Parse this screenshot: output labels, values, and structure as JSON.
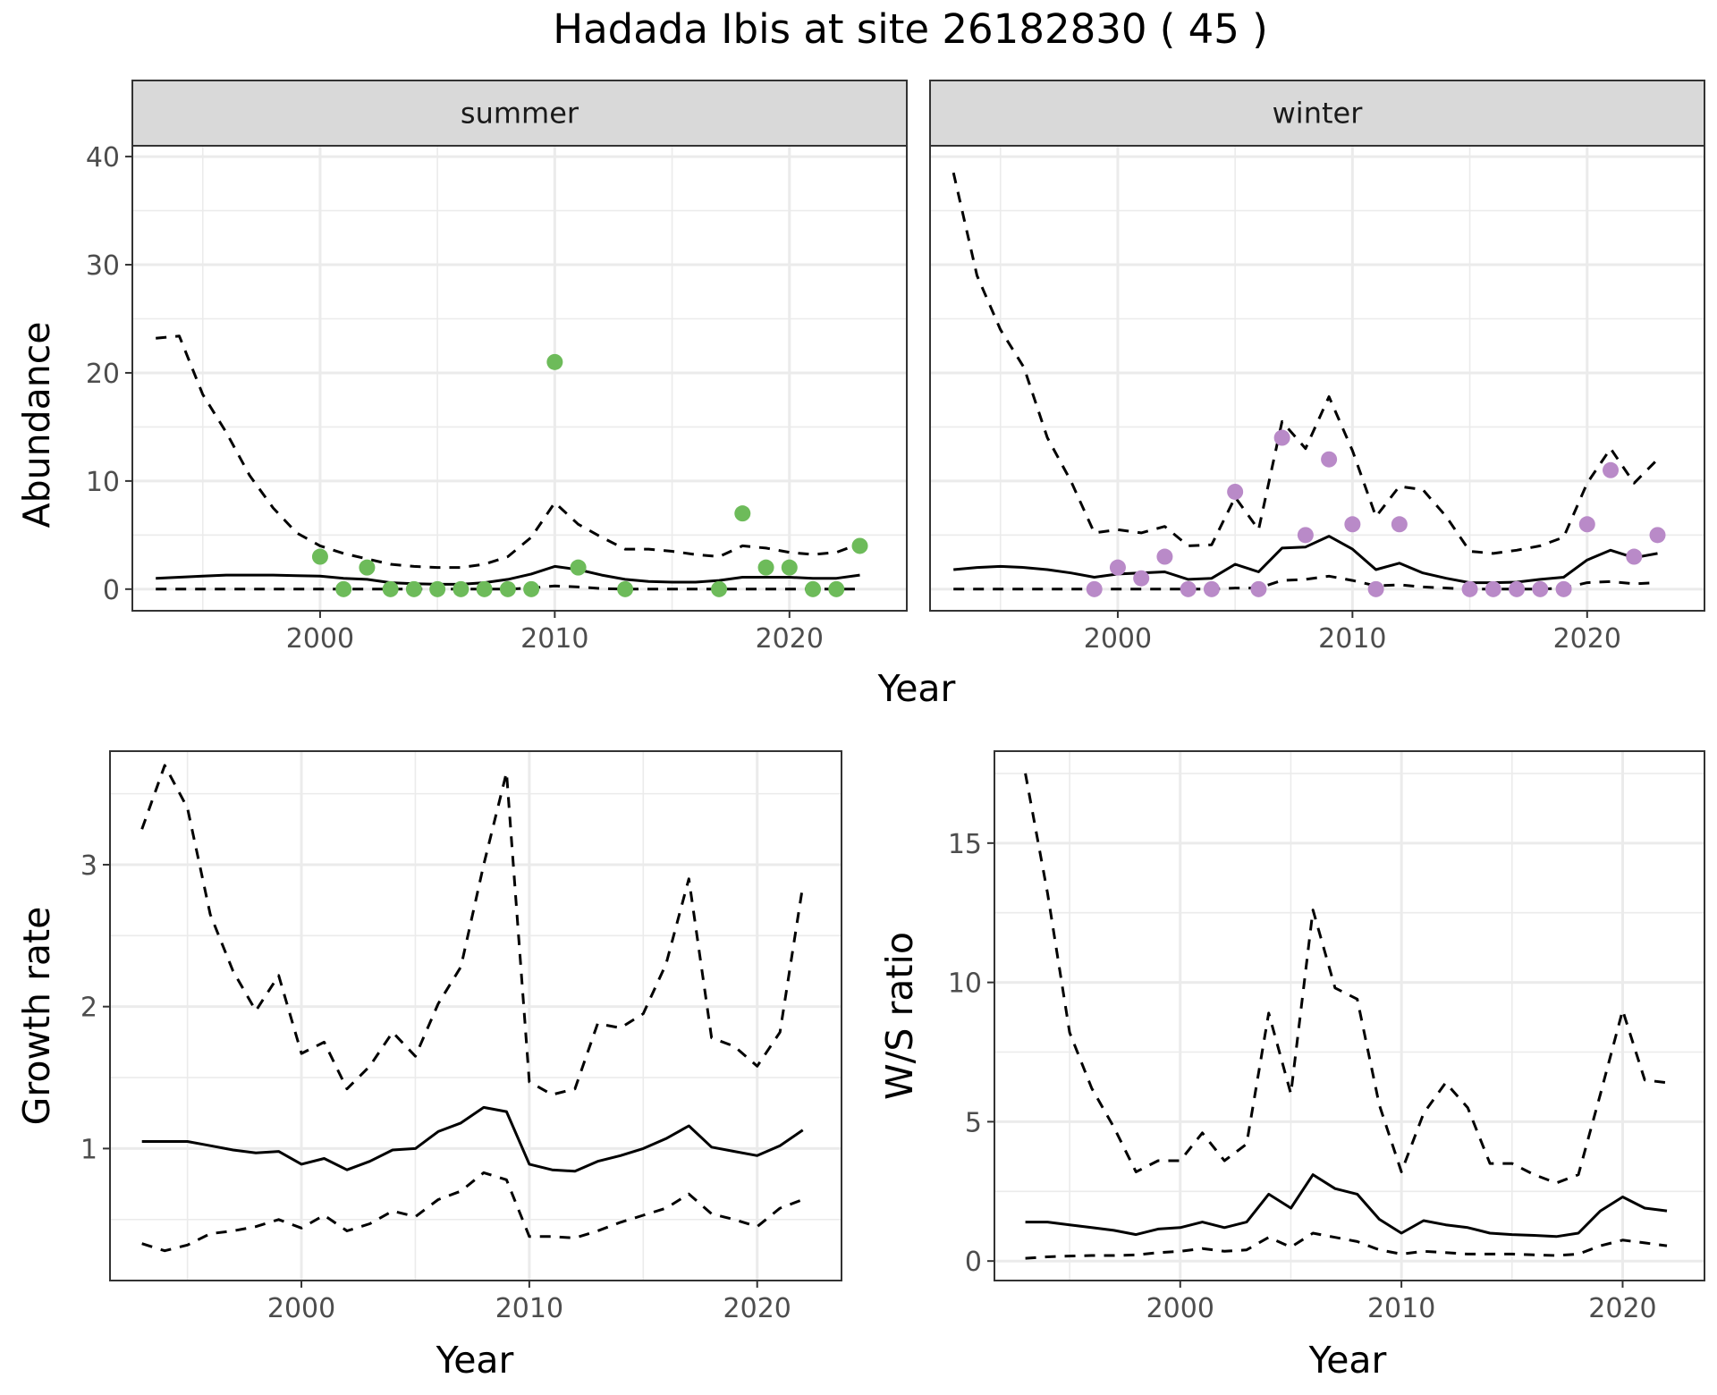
{
  "title": "Hadada Ibis at site 26182830 ( 45 )",
  "colors": {
    "summer_points": "#6dbb5a",
    "winter_points": "#b98ac8",
    "lines": "#000000",
    "grid": "#ebebeb",
    "strip_fill": "#d9d9d9"
  },
  "chart_data": [
    {
      "type": "line",
      "panel": "summer",
      "strip_label": "summer",
      "xlabel": "Year",
      "ylabel": "Abundance",
      "xlim": [
        1992,
        2025
      ],
      "ylim": [
        -2,
        41
      ],
      "x_ticks": [
        2000,
        2010,
        2020
      ],
      "y_ticks": [
        0,
        10,
        20,
        30,
        40
      ],
      "grid": true,
      "x": [
        1993,
        1994,
        1995,
        1996,
        1997,
        1998,
        1999,
        2000,
        2001,
        2002,
        2003,
        2004,
        2005,
        2006,
        2007,
        2008,
        2009,
        2010,
        2011,
        2012,
        2013,
        2014,
        2015,
        2016,
        2017,
        2018,
        2019,
        2020,
        2021,
        2022,
        2023
      ],
      "series": [
        {
          "style": "solid",
          "values": [
            1.0,
            1.1,
            1.2,
            1.3,
            1.3,
            1.3,
            1.25,
            1.2,
            1.0,
            0.9,
            0.6,
            0.5,
            0.45,
            0.45,
            0.6,
            0.9,
            1.4,
            2.1,
            1.8,
            1.3,
            0.9,
            0.7,
            0.65,
            0.65,
            0.8,
            1.1,
            1.1,
            1.1,
            1.0,
            1.0,
            1.3
          ]
        },
        {
          "style": "dashed",
          "values": [
            23.2,
            23.4,
            18,
            14.5,
            10.5,
            7.5,
            5.2,
            4.0,
            3.3,
            2.8,
            2.3,
            2.1,
            2.0,
            2.0,
            2.3,
            3.0,
            4.8,
            8.0,
            6.0,
            4.8,
            3.7,
            3.7,
            3.5,
            3.2,
            3.0,
            4.0,
            3.8,
            3.4,
            3.2,
            3.4,
            4.2
          ]
        },
        {
          "style": "dashed",
          "values": [
            0.0,
            0.0,
            0.0,
            0.0,
            0.0,
            0.0,
            0.0,
            0.0,
            0.0,
            0.0,
            0.0,
            0.0,
            0.0,
            0.0,
            0.0,
            0.0,
            0.1,
            0.3,
            0.2,
            0.05,
            0.0,
            0.0,
            0.0,
            0.0,
            0.0,
            0.0,
            0.0,
            0.0,
            0.0,
            0.0,
            0.0
          ]
        }
      ],
      "points": {
        "x": [
          2000,
          2001,
          2002,
          2003,
          2004,
          2005,
          2006,
          2007,
          2008,
          2009,
          2010,
          2011,
          2013,
          2017,
          2018,
          2019,
          2020,
          2021,
          2022,
          2023
        ],
        "y": [
          3,
          0,
          2,
          0,
          0,
          0,
          0,
          0,
          0,
          0,
          21,
          2,
          0,
          0,
          7,
          2,
          2,
          0,
          0,
          4
        ]
      }
    },
    {
      "type": "line",
      "panel": "winter",
      "strip_label": "winter",
      "xlabel": "Year",
      "ylabel": "Abundance",
      "xlim": [
        1992,
        2025
      ],
      "ylim": [
        -2,
        41
      ],
      "x_ticks": [
        2000,
        2010,
        2020
      ],
      "y_ticks": [
        0,
        10,
        20,
        30,
        40
      ],
      "grid": true,
      "x": [
        1993,
        1994,
        1995,
        1996,
        1997,
        1998,
        1999,
        2000,
        2001,
        2002,
        2003,
        2004,
        2005,
        2006,
        2007,
        2008,
        2009,
        2010,
        2011,
        2012,
        2013,
        2014,
        2015,
        2016,
        2017,
        2018,
        2019,
        2020,
        2021,
        2022,
        2023
      ],
      "series": [
        {
          "style": "solid",
          "values": [
            1.8,
            2.0,
            2.1,
            2.0,
            1.8,
            1.5,
            1.1,
            1.4,
            1.5,
            1.6,
            0.9,
            1.0,
            2.3,
            1.6,
            3.8,
            3.9,
            4.9,
            3.7,
            1.8,
            2.4,
            1.5,
            1.0,
            0.6,
            0.6,
            0.65,
            0.9,
            1.1,
            2.7,
            3.6,
            2.9,
            3.3
          ]
        },
        {
          "style": "dashed",
          "values": [
            38.5,
            29,
            24,
            20.5,
            14,
            10,
            5.2,
            5.5,
            5.2,
            5.8,
            4.0,
            4.1,
            8.5,
            5.5,
            15.5,
            13,
            17.8,
            12.8,
            6.7,
            9.5,
            9.2,
            6.7,
            3.5,
            3.3,
            3.6,
            4.0,
            4.8,
            9.8,
            13.0,
            9.8,
            12.0
          ]
        },
        {
          "style": "dashed",
          "values": [
            0.0,
            0.0,
            0.0,
            0.0,
            0.0,
            0.0,
            0.0,
            0.0,
            0.0,
            0.0,
            0.0,
            0.0,
            0.1,
            0.1,
            0.8,
            0.9,
            1.2,
            0.8,
            0.3,
            0.4,
            0.2,
            0.1,
            0.0,
            0.0,
            0.0,
            0.0,
            0.1,
            0.6,
            0.7,
            0.5,
            0.6
          ]
        }
      ],
      "points": {
        "x": [
          1999,
          2000,
          2001,
          2002,
          2003,
          2004,
          2005,
          2006,
          2007,
          2008,
          2009,
          2010,
          2011,
          2012,
          2015,
          2016,
          2017,
          2018,
          2019,
          2020,
          2021,
          2022,
          2023
        ],
        "y": [
          0,
          2,
          1,
          3,
          0,
          0,
          9,
          0,
          14,
          5,
          12,
          6,
          0,
          6,
          0,
          0,
          0,
          0,
          0,
          6,
          11,
          3,
          5
        ]
      }
    },
    {
      "type": "line",
      "panel": "growth",
      "xlabel": "Year",
      "ylabel": "Growth rate",
      "xlim": [
        1991.6,
        2023.7
      ],
      "ylim": [
        0.07,
        3.8
      ],
      "x_ticks": [
        2000,
        2010,
        2020
      ],
      "y_ticks": [
        1,
        2,
        3
      ],
      "grid": true,
      "x": [
        1993,
        1994,
        1995,
        1996,
        1997,
        1998,
        1999,
        2000,
        2001,
        2002,
        2003,
        2004,
        2005,
        2006,
        2007,
        2008,
        2009,
        2010,
        2011,
        2012,
        2013,
        2014,
        2015,
        2016,
        2017,
        2018,
        2019,
        2020,
        2021,
        2022
      ],
      "series": [
        {
          "style": "solid",
          "values": [
            1.05,
            1.05,
            1.05,
            1.02,
            0.99,
            0.97,
            0.98,
            0.89,
            0.93,
            0.85,
            0.91,
            0.99,
            1.0,
            1.12,
            1.18,
            1.29,
            1.26,
            0.89,
            0.85,
            0.84,
            0.91,
            0.95,
            1.0,
            1.07,
            1.16,
            1.01,
            0.98,
            0.95,
            1.02,
            1.13
          ]
        },
        {
          "style": "dashed",
          "values": [
            3.25,
            3.7,
            3.4,
            2.65,
            2.25,
            1.97,
            2.22,
            1.67,
            1.75,
            1.42,
            1.58,
            1.82,
            1.65,
            2.02,
            2.28,
            3.0,
            3.65,
            1.47,
            1.38,
            1.42,
            1.88,
            1.85,
            1.95,
            2.3,
            2.9,
            1.78,
            1.72,
            1.58,
            1.82,
            2.85
          ]
        },
        {
          "style": "dashed",
          "values": [
            0.33,
            0.28,
            0.32,
            0.4,
            0.42,
            0.45,
            0.5,
            0.44,
            0.53,
            0.42,
            0.47,
            0.56,
            0.52,
            0.64,
            0.7,
            0.83,
            0.78,
            0.38,
            0.38,
            0.37,
            0.42,
            0.48,
            0.53,
            0.58,
            0.68,
            0.54,
            0.5,
            0.45,
            0.58,
            0.64
          ]
        }
      ]
    },
    {
      "type": "line",
      "panel": "ws",
      "xlabel": "Year",
      "ylabel": "W/S ratio",
      "xlim": [
        1991.6,
        2023.7
      ],
      "ylim": [
        -0.7,
        18.3
      ],
      "x_ticks": [
        2000,
        2010,
        2020
      ],
      "y_ticks": [
        0,
        5,
        10,
        15
      ],
      "grid": true,
      "x": [
        1993,
        1994,
        1995,
        1996,
        1997,
        1998,
        1999,
        2000,
        2001,
        2002,
        2003,
        2004,
        2005,
        2006,
        2007,
        2008,
        2009,
        2010,
        2011,
        2012,
        2013,
        2014,
        2015,
        2016,
        2017,
        2018,
        2019,
        2020,
        2021,
        2022
      ],
      "series": [
        {
          "style": "solid",
          "values": [
            1.4,
            1.4,
            1.3,
            1.2,
            1.1,
            0.95,
            1.15,
            1.2,
            1.4,
            1.2,
            1.4,
            2.4,
            1.9,
            3.1,
            2.6,
            2.4,
            1.5,
            1.0,
            1.45,
            1.3,
            1.2,
            1.0,
            0.95,
            0.92,
            0.88,
            1.0,
            1.8,
            2.3,
            1.9,
            1.8
          ]
        },
        {
          "style": "dashed",
          "values": [
            17.5,
            13.2,
            8.2,
            6.2,
            4.8,
            3.2,
            3.6,
            3.6,
            4.6,
            3.6,
            4.2,
            8.9,
            6.0,
            12.6,
            9.8,
            9.4,
            5.6,
            3.2,
            5.3,
            6.4,
            5.5,
            3.5,
            3.5,
            3.1,
            2.8,
            3.1,
            6.0,
            9.0,
            6.5,
            6.4
          ]
        },
        {
          "style": "dashed",
          "values": [
            0.1,
            0.15,
            0.18,
            0.2,
            0.2,
            0.22,
            0.3,
            0.35,
            0.45,
            0.35,
            0.4,
            0.85,
            0.5,
            1.0,
            0.85,
            0.7,
            0.4,
            0.25,
            0.35,
            0.3,
            0.25,
            0.25,
            0.25,
            0.22,
            0.2,
            0.25,
            0.55,
            0.75,
            0.65,
            0.55
          ]
        }
      ]
    }
  ]
}
